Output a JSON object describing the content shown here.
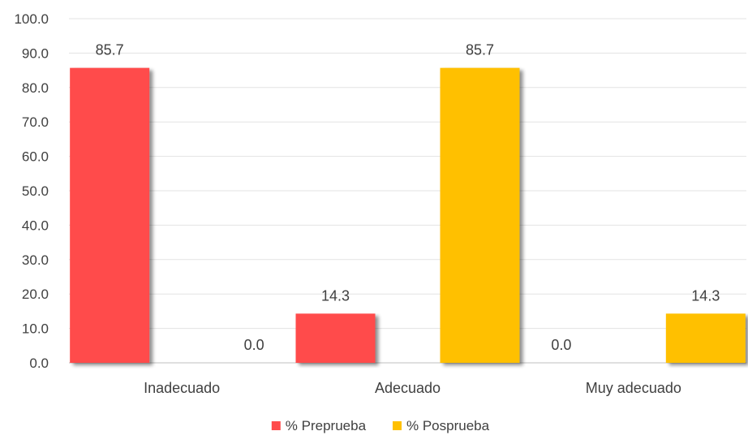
{
  "chart_data": {
    "type": "bar",
    "categories": [
      "Inadecuado",
      "Adecuado",
      "Muy adecuado"
    ],
    "series": [
      {
        "name": "% Preprueba",
        "values": [
          85.7,
          14.3,
          0.0
        ],
        "color": "#ff4b4b"
      },
      {
        "name": "% Posprueba",
        "values": [
          0.0,
          85.7,
          14.3
        ],
        "color": "#ffc000"
      }
    ],
    "ylim": [
      0,
      100
    ],
    "yticks": [
      "0.0",
      "10.0",
      "20.0",
      "30.0",
      "40.0",
      "50.0",
      "60.0",
      "70.0",
      "80.0",
      "90.0",
      "100.0"
    ],
    "data_labels": [
      [
        "85.7",
        "14.3",
        "0.0"
      ],
      [
        "0.0",
        "85.7",
        "14.3"
      ]
    ],
    "grid": true,
    "legend_position": "bottom-center"
  }
}
